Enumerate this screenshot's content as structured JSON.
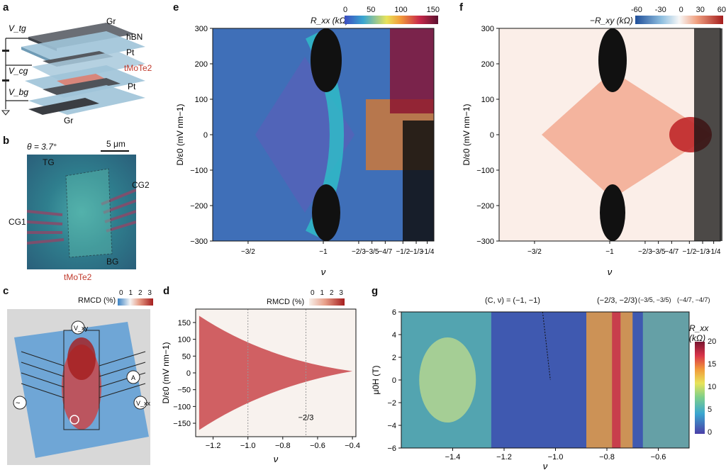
{
  "panels": {
    "a": {
      "letter": "a",
      "layers": [
        "Gr",
        "hBN",
        "Pt",
        "tMoTe2",
        "Pt",
        "Gr"
      ],
      "voltages": [
        "V_tg",
        "V_cg",
        "V_bg"
      ]
    },
    "b": {
      "letter": "b",
      "theta": "θ = 3.7°",
      "scale": "5 μm",
      "labels": [
        "TG",
        "CG2",
        "CG1",
        "BG",
        "tMoTe2"
      ]
    },
    "c": {
      "letter": "c",
      "colorbar_title": "RMCD (%)",
      "colorbar_ticks": [
        "0",
        "1",
        "2",
        "3"
      ],
      "meters": [
        "V_xy",
        "A",
        "V_xx"
      ]
    },
    "d": {
      "letter": "d",
      "colorbar_title": "RMCD (%)",
      "colorbar_ticks": [
        "0",
        "1",
        "2",
        "3"
      ]
    },
    "e": {
      "letter": "e",
      "colorbar_title": "R_xx (kΩ)",
      "colorbar_ticks": [
        "0",
        "50",
        "100",
        "150"
      ]
    },
    "f": {
      "letter": "f",
      "colorbar_title": "−R_xy (kΩ)",
      "colorbar_ticks": [
        "-60",
        "-30",
        "0",
        "30",
        "60"
      ]
    },
    "g": {
      "letter": "g",
      "colorbar_title": "R_xx (kΩ)",
      "colorbar_ticks": [
        "20",
        "15",
        "10",
        "5",
        "0"
      ],
      "annotations": [
        "(C, ν) = (−1, −1)",
        "(−2/3, −2/3)",
        "(−3/5, −3/5)",
        "(−4/7, −4/7)"
      ]
    }
  },
  "chart_data": [
    {
      "type": "heatmap",
      "panel": "e",
      "xlabel": "ν",
      "ylabel": "D/ε0 (mV nm−1)",
      "ylim": [
        -300,
        300
      ],
      "y_ticks": [
        300,
        200,
        100,
        0,
        -100,
        -200,
        -300
      ],
      "x_ticks": [
        "−3/2",
        "−1",
        "−2/3",
        "−3/5",
        "−4/7",
        "−1/2",
        "−1/3",
        "−1/4"
      ]
    },
    {
      "type": "heatmap",
      "panel": "f",
      "xlabel": "ν",
      "ylabel": "D/ε0 (mV nm−1)",
      "ylim": [
        -300,
        300
      ],
      "y_ticks": [
        300,
        200,
        100,
        0,
        -100,
        -200,
        -300
      ],
      "x_ticks": [
        "−3/2",
        "−1",
        "−2/3",
        "−3/5",
        "−4/7",
        "−1/2",
        "−1/3",
        "−1/4"
      ]
    },
    {
      "type": "heatmap",
      "panel": "d",
      "xlabel": "ν",
      "ylabel": "D/ε0 (mV nm−1)",
      "xlim": [
        -1.3,
        -0.38
      ],
      "ylim": [
        -190,
        190
      ],
      "x_ticks": [
        -1.2,
        -1.0,
        -0.8,
        -0.6,
        -0.4
      ],
      "y_ticks": [
        150,
        100,
        50,
        0,
        -50,
        -100,
        -150
      ],
      "annotation": "−2/3"
    },
    {
      "type": "heatmap",
      "panel": "g",
      "xlabel": "ν",
      "ylabel": "μ0H (T)",
      "xlim": [
        -1.6,
        -0.48
      ],
      "ylim": [
        -6,
        6
      ],
      "x_ticks": [
        -1.4,
        -1.2,
        -1.0,
        -0.8,
        -0.6
      ],
      "y_ticks": [
        6,
        4,
        2,
        0,
        -2,
        -4,
        -6
      ]
    }
  ]
}
